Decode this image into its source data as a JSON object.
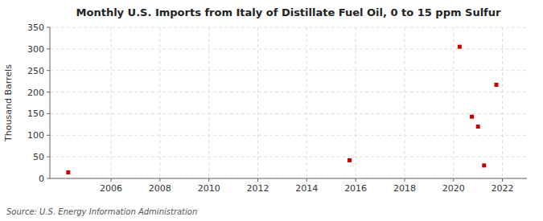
{
  "chart_data": {
    "type": "scatter",
    "title": "Monthly U.S. Imports from Italy of Distillate Fuel Oil, 0 to 15 ppm Sulfur",
    "ylabel": "Thousand Barrels",
    "annotations": [
      "Source: U.S. Energy Information Administration"
    ],
    "x": [
      2004.25,
      2015.75,
      2020.25,
      2020.75,
      2021.0,
      2021.25,
      2021.75
    ],
    "values": [
      14,
      42,
      305,
      143,
      120,
      30,
      217
    ],
    "color": "#cc0000",
    "marker": "square",
    "xlim": [
      2003.5,
      2023.0
    ],
    "ylim": [
      0,
      350
    ],
    "xticks": [
      2006,
      2008,
      2010,
      2012,
      2014,
      2016,
      2018,
      2020,
      2022
    ],
    "yticks": [
      0,
      50,
      100,
      150,
      200,
      250,
      300,
      350
    ],
    "grid": true
  }
}
